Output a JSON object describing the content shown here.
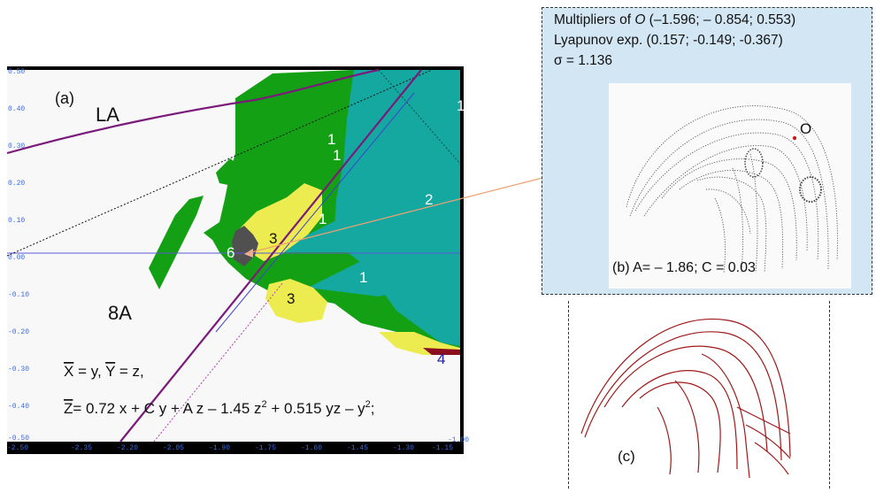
{
  "panel_a": {
    "label": "(a)",
    "regions": {
      "la": "LA",
      "a8": "8A"
    },
    "region_numbers": [
      "1",
      "1",
      "1",
      "2",
      "1",
      "3",
      "6",
      "1",
      "3",
      "4"
    ],
    "axis": {
      "x_ticks": [
        "-2.50",
        "-2.35",
        "-2.20",
        "-2.05",
        "-1.90",
        "-1.75",
        "-1.60",
        "-1.45",
        "-1.30",
        "-1.15",
        "-1.00"
      ],
      "y_ticks": [
        "0.50",
        "0.40",
        "0.30",
        "0.20",
        "0.10",
        "0.00",
        "-0.10",
        "-0.20",
        "-0.30",
        "-0.40",
        "-0.50"
      ]
    },
    "eq1_x": "X",
    "eq1_mid": " = y, ",
    "eq1_y": "Y",
    "eq1_tail": " = z,",
    "eq2_z": "Z",
    "eq2_a": "= 0.72 x + C y + A z – 1.45 z",
    "eq2_sup1": "2",
    "eq2_b": " + 0.515 yz – y",
    "eq2_sup2": "2",
    "eq2_c": ";",
    "colors": {
      "green": "#14a014",
      "teal": "#15a8a0",
      "yellow": "#ecec50",
      "gray": "#505050",
      "purple": "#7a1a7a",
      "blue": "#5a5ad8"
    }
  },
  "panel_b": {
    "line1_a": "Multipliers of ",
    "line1_o": "O",
    "line1_b": " (–1.596; – 0.854; 0.553)",
    "line2": "Lyapunov exp. (0.157; -0.149; -0.367)",
    "line3": "σ = 1.136",
    "point_label": "O",
    "caption": "(b)  A= – 1.86; C = 0.03"
  },
  "panel_c": {
    "label": "(c)",
    "color": "#a01818"
  }
}
